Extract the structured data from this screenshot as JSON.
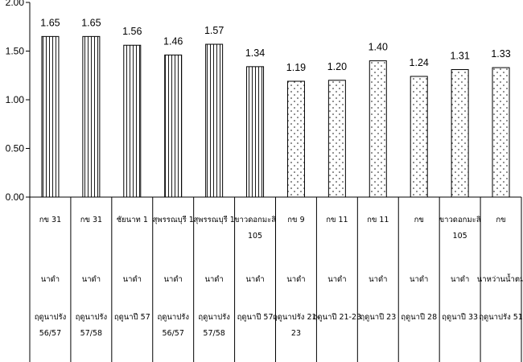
{
  "chart_data": {
    "type": "bar",
    "title": "",
    "xlabel": "",
    "ylabel": "",
    "ylim": [
      0,
      2.0
    ],
    "yticks": [
      "0.00",
      "0.50",
      "1.00",
      "1.50",
      "2.00"
    ],
    "ytick_values": [
      0,
      0.5,
      1.0,
      1.5,
      2.0
    ],
    "grid": false,
    "value_labels": [
      "1.65",
      "1.65",
      "1.56",
      "1.46",
      "1.57",
      "1.34",
      "1.19",
      "1.20",
      "1.40",
      "1.24",
      "1.31",
      "1.33"
    ],
    "values": [
      1.65,
      1.65,
      1.56,
      1.46,
      1.57,
      1.34,
      1.19,
      1.2,
      1.4,
      1.24,
      1.31,
      1.33
    ],
    "fill_patterns": [
      "vertical-lines",
      "vertical-lines",
      "vertical-lines",
      "vertical-lines",
      "vertical-lines",
      "vertical-lines",
      "dots",
      "dots",
      "dots",
      "dots",
      "dots",
      "dots"
    ],
    "categories": [
      {
        "variety": [
          "กข 31"
        ],
        "rice_type": "นาดำ",
        "season": [
          "ฤดูนาปรัง",
          "56/57"
        ]
      },
      {
        "variety": [
          "กข 31"
        ],
        "rice_type": "นาดำ",
        "season": [
          "ฤดูนาปรัง",
          "57/58"
        ]
      },
      {
        "variety": [
          "ชัยนาท 1"
        ],
        "rice_type": "นาดำ",
        "season": [
          "ฤดูนาปี 57"
        ]
      },
      {
        "variety": [
          "สุพรรณบุรี 1"
        ],
        "rice_type": "นาดำ",
        "season": [
          "ฤดูนาปรัง",
          "56/57"
        ]
      },
      {
        "variety": [
          "สุพรรณบุรี 1"
        ],
        "rice_type": "นาดำ",
        "season": [
          "ฤดูนาปรัง",
          "57/58"
        ]
      },
      {
        "variety": [
          "ขาวดอกมะลิ",
          "105"
        ],
        "rice_type": "นาดำ",
        "season": [
          "ฤดูนาปี 57"
        ]
      },
      {
        "variety": [
          "กข 9"
        ],
        "rice_type": "นาดำ",
        "season": [
          "ฤดูนาปรัง 21-",
          "23"
        ]
      },
      {
        "variety": [
          "กข 11"
        ],
        "rice_type": "นาดำ",
        "season": [
          "ฤดูนาปี 21-23"
        ]
      },
      {
        "variety": [
          "กข 11"
        ],
        "rice_type": "นาดำ",
        "season": [
          "ฤดูนาปี 23"
        ]
      },
      {
        "variety": [
          "กข"
        ],
        "rice_type": "นาดำ",
        "season": [
          "ฤดูนาปี 28"
        ]
      },
      {
        "variety": [
          "ขาวดอกมะลิ",
          "105"
        ],
        "rice_type": "นาดำ",
        "season": [
          "ฤดูนาปี 33"
        ]
      },
      {
        "variety": [
          "กข"
        ],
        "rice_type": "นาหว่านน้ำตม",
        "season": [
          "ฤดูนาปรัง 51"
        ]
      }
    ]
  }
}
